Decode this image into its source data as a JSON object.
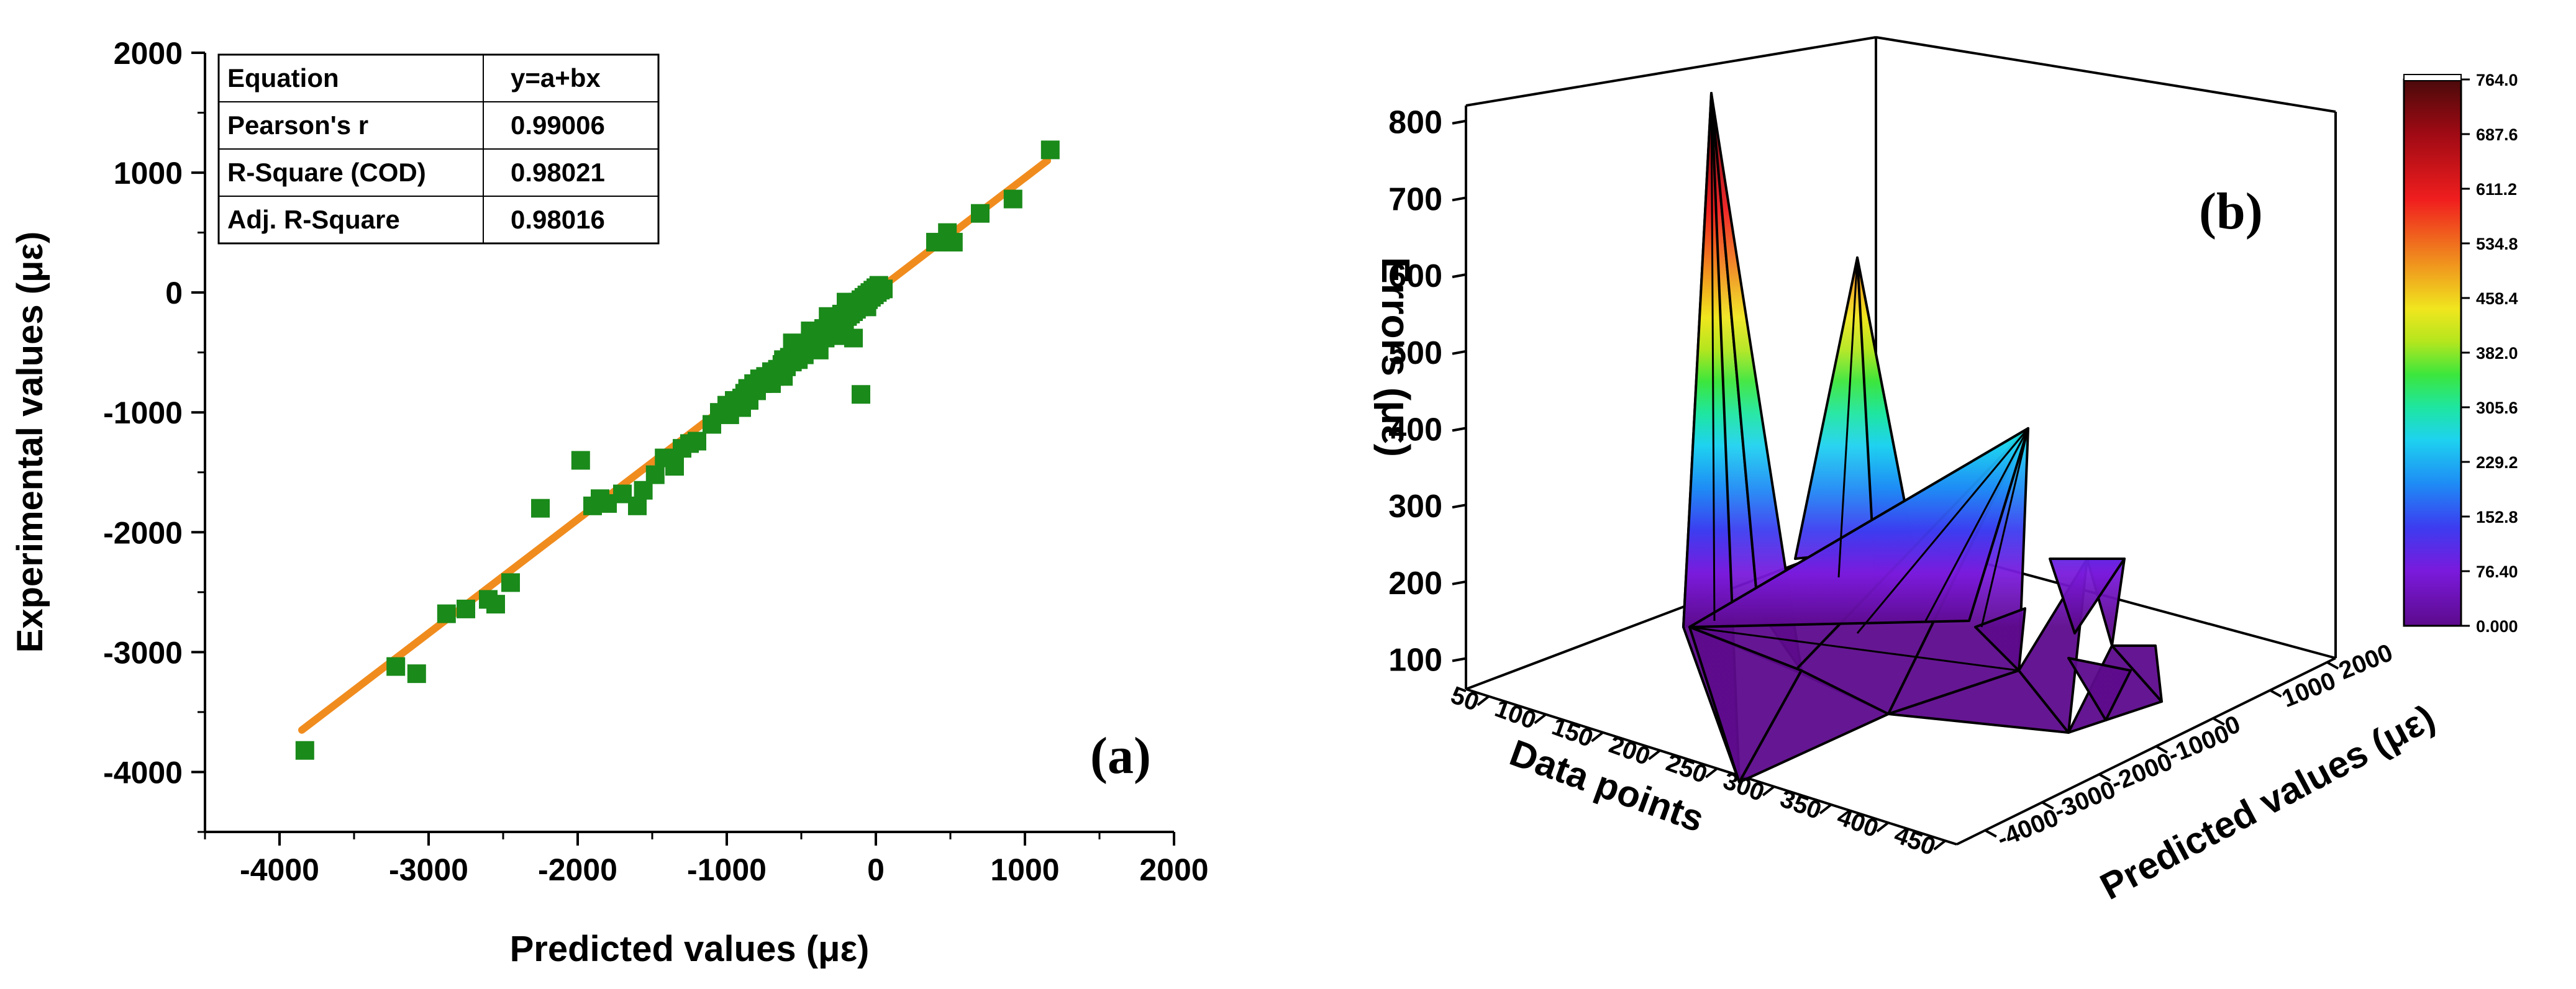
{
  "figure": {
    "panel_a_label": "(a)",
    "panel_b_label": "(b)"
  },
  "chart_data": [
    {
      "type": "scatter",
      "title": "",
      "xlabel": "Predicted values (με)",
      "ylabel": "Experimental values (με)",
      "xlim": [
        -4500,
        2000
      ],
      "ylim": [
        -4500,
        2000
      ],
      "xticks": [
        -4000,
        -3000,
        -2000,
        -1000,
        0,
        1000,
        2000
      ],
      "yticks": [
        -4000,
        -3000,
        -2000,
        -1000,
        0,
        1000,
        2000
      ],
      "stats_table": {
        "rows": [
          {
            "label": "Equation",
            "value": "y=a+bx"
          },
          {
            "label": "Pearson's r",
            "value": "0.99006"
          },
          {
            "label": "R-Square (COD)",
            "value": "0.98021"
          },
          {
            "label": "Adj. R-Square",
            "value": "0.98016"
          }
        ]
      },
      "fit_line": {
        "x": [
          -3850,
          1150
        ],
        "y": [
          -3650,
          1100
        ],
        "color": "#f08c1e"
      },
      "marker_color": "#1a8a1a",
      "points": [
        [
          -3830,
          -3820
        ],
        [
          -3220,
          -3120
        ],
        [
          -3080,
          -3180
        ],
        [
          -2880,
          -2680
        ],
        [
          -2750,
          -2640
        ],
        [
          -2600,
          -2560
        ],
        [
          -2550,
          -2600
        ],
        [
          -2450,
          -2420
        ],
        [
          -2250,
          -1800
        ],
        [
          -1980,
          -1400
        ],
        [
          -1900,
          -1780
        ],
        [
          -1850,
          -1720
        ],
        [
          -1800,
          -1760
        ],
        [
          -1700,
          -1680
        ],
        [
          -1600,
          -1780
        ],
        [
          -1560,
          -1650
        ],
        [
          -1480,
          -1520
        ],
        [
          -1420,
          -1380
        ],
        [
          -1350,
          -1450
        ],
        [
          -1300,
          -1300
        ],
        [
          -1250,
          -1260
        ],
        [
          -1200,
          -1240
        ],
        [
          -1100,
          -1100
        ],
        [
          -1050,
          -1000
        ],
        [
          -1000,
          -940
        ],
        [
          -980,
          -1020
        ],
        [
          -950,
          -900
        ],
        [
          -900,
          -880
        ],
        [
          -880,
          -840
        ],
        [
          -860,
          -800
        ],
        [
          -850,
          -900
        ],
        [
          -820,
          -760
        ],
        [
          -800,
          -820
        ],
        [
          -780,
          -720
        ],
        [
          -760,
          -760
        ],
        [
          -740,
          -700
        ],
        [
          -720,
          -740
        ],
        [
          -700,
          -660
        ],
        [
          -680,
          -700
        ],
        [
          -660,
          -640
        ],
        [
          -650,
          -680
        ],
        [
          -630,
          -600
        ],
        [
          -620,
          -560
        ],
        [
          -600,
          -620
        ],
        [
          -580,
          -540
        ],
        [
          -560,
          -580
        ],
        [
          -540,
          -500
        ],
        [
          -520,
          -560
        ],
        [
          -500,
          -480
        ],
        [
          -480,
          -520
        ],
        [
          -470,
          -440
        ],
        [
          -450,
          -470
        ],
        [
          -440,
          -400
        ],
        [
          -420,
          -430
        ],
        [
          -400,
          -380
        ],
        [
          -390,
          -420
        ],
        [
          -380,
          -340
        ],
        [
          -360,
          -360
        ],
        [
          -350,
          -300
        ],
        [
          -340,
          -380
        ],
        [
          -320,
          -320
        ],
        [
          -310,
          -260
        ],
        [
          -300,
          -300
        ],
        [
          -290,
          -340
        ],
        [
          -280,
          -240
        ],
        [
          -260,
          -280
        ],
        [
          -250,
          -220
        ],
        [
          -240,
          -260
        ],
        [
          -230,
          -180
        ],
        [
          -220,
          -220
        ],
        [
          -210,
          -240
        ],
        [
          -200,
          -160
        ],
        [
          -190,
          -200
        ],
        [
          -180,
          -140
        ],
        [
          -170,
          -180
        ],
        [
          -160,
          -120
        ],
        [
          -150,
          -160
        ],
        [
          -140,
          -100
        ],
        [
          -130,
          -140
        ],
        [
          -120,
          -80
        ],
        [
          -110,
          -120
        ],
        [
          -100,
          -60
        ],
        [
          -90,
          -100
        ],
        [
          -80,
          -40
        ],
        [
          -70,
          -80
        ],
        [
          -60,
          -20
        ],
        [
          -50,
          -60
        ],
        [
          -40,
          0
        ],
        [
          -30,
          -40
        ],
        [
          -20,
          20
        ],
        [
          -10,
          -20
        ],
        [
          0,
          40
        ],
        [
          10,
          0
        ],
        [
          20,
          60
        ],
        [
          30,
          20
        ],
        [
          50,
          30
        ],
        [
          -560,
          -420
        ],
        [
          -440,
          -320
        ],
        [
          -320,
          -200
        ],
        [
          -200,
          -80
        ],
        [
          -900,
          -960
        ],
        [
          -620,
          -700
        ],
        [
          -380,
          -480
        ],
        [
          -260,
          -360
        ],
        [
          -100,
          -850
        ],
        [
          -150,
          -380
        ],
        [
          -60,
          -120
        ],
        [
          -700,
          -760
        ],
        [
          400,
          420
        ],
        [
          480,
          500
        ],
        [
          520,
          420
        ],
        [
          700,
          660
        ],
        [
          920,
          780
        ],
        [
          1170,
          1190
        ]
      ]
    },
    {
      "type": "surface3d",
      "title": "",
      "xlabel": "Data points",
      "ylabel": "Predicted values (με)",
      "zlabel": "Errors (με)",
      "xticks": [
        50,
        100,
        150,
        200,
        250,
        300,
        350,
        400,
        450
      ],
      "yticks": [
        -4000,
        -3000,
        -2000,
        -1000,
        0,
        1000,
        2000
      ],
      "zticks": [
        100,
        200,
        300,
        400,
        500,
        600,
        700,
        800
      ],
      "colorbar": {
        "min": 0.0,
        "max": 764.0,
        "labels": [
          "764.0",
          "687.6",
          "611.2",
          "534.8",
          "458.4",
          "382.0",
          "305.6",
          "229.2",
          "152.8",
          "76.40",
          "0.000"
        ]
      },
      "surface_shape": {
        "color_stops": [
          "#5d0a8c",
          "#7a1adc",
          "#3c3cf0",
          "#1e8cf5",
          "#1ed2f0",
          "#1ee6a0",
          "#3ce63c",
          "#b4e61e",
          "#f0e61e",
          "#f0961e",
          "#f01e1e",
          "#a00a14",
          "#4a0a0a"
        ]
      }
    }
  ]
}
